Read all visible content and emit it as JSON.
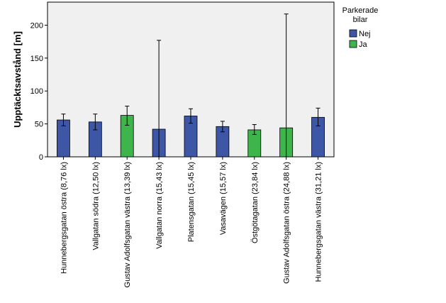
{
  "chart_data": {
    "type": "bar",
    "title": "",
    "xlabel": "",
    "ylabel": "Upptäcktsavstånd [m]",
    "ylim": [
      0,
      235
    ],
    "yticks": [
      0,
      50,
      100,
      150,
      200
    ],
    "grid": false,
    "legend_title_lines": [
      "Parkerade",
      "bilar"
    ],
    "legend_placement": "top-right",
    "series": [
      {
        "name": "Nej",
        "color": "#3d56a6"
      },
      {
        "name": "Ja",
        "color": "#3db54a"
      }
    ],
    "categories": [
      "Hunnebergsgatan östra (8,76 lx)",
      "Vallgatan södra (12,50 lx)",
      "Gustav Adolfsgatan västra (13,39 lx)",
      "Vallgatan norra (15,43 lx)",
      "Platensgatan (15,45 lx)",
      "Vasavägen (15,57 lx)",
      "Östgötagatan (23,84 lx)",
      "Gustav Adolfsgatan östra (24,88 lx)",
      "Hunnebergsgatan västra (31,21 lx)"
    ],
    "bars": [
      {
        "category": 0,
        "series": "Nej",
        "value": 56,
        "err_low": 47,
        "err_high": 65
      },
      {
        "category": 1,
        "series": "Nej",
        "value": 53,
        "err_low": 41,
        "err_high": 65
      },
      {
        "category": 2,
        "series": "Ja",
        "value": 63,
        "err_low": 48,
        "err_high": 77
      },
      {
        "category": 3,
        "series": "Nej",
        "value": 42,
        "err_low": 0,
        "err_high": 177
      },
      {
        "category": 4,
        "series": "Nej",
        "value": 62,
        "err_low": 51,
        "err_high": 73
      },
      {
        "category": 5,
        "series": "Nej",
        "value": 46,
        "err_low": 38,
        "err_high": 54
      },
      {
        "category": 6,
        "series": "Ja",
        "value": 41,
        "err_low": 34,
        "err_high": 49
      },
      {
        "category": 7,
        "series": "Ja",
        "value": 44,
        "err_low": 0,
        "err_high": 217
      },
      {
        "category": 8,
        "series": "Nej",
        "value": 60,
        "err_low": 47,
        "err_high": 74
      }
    ]
  }
}
